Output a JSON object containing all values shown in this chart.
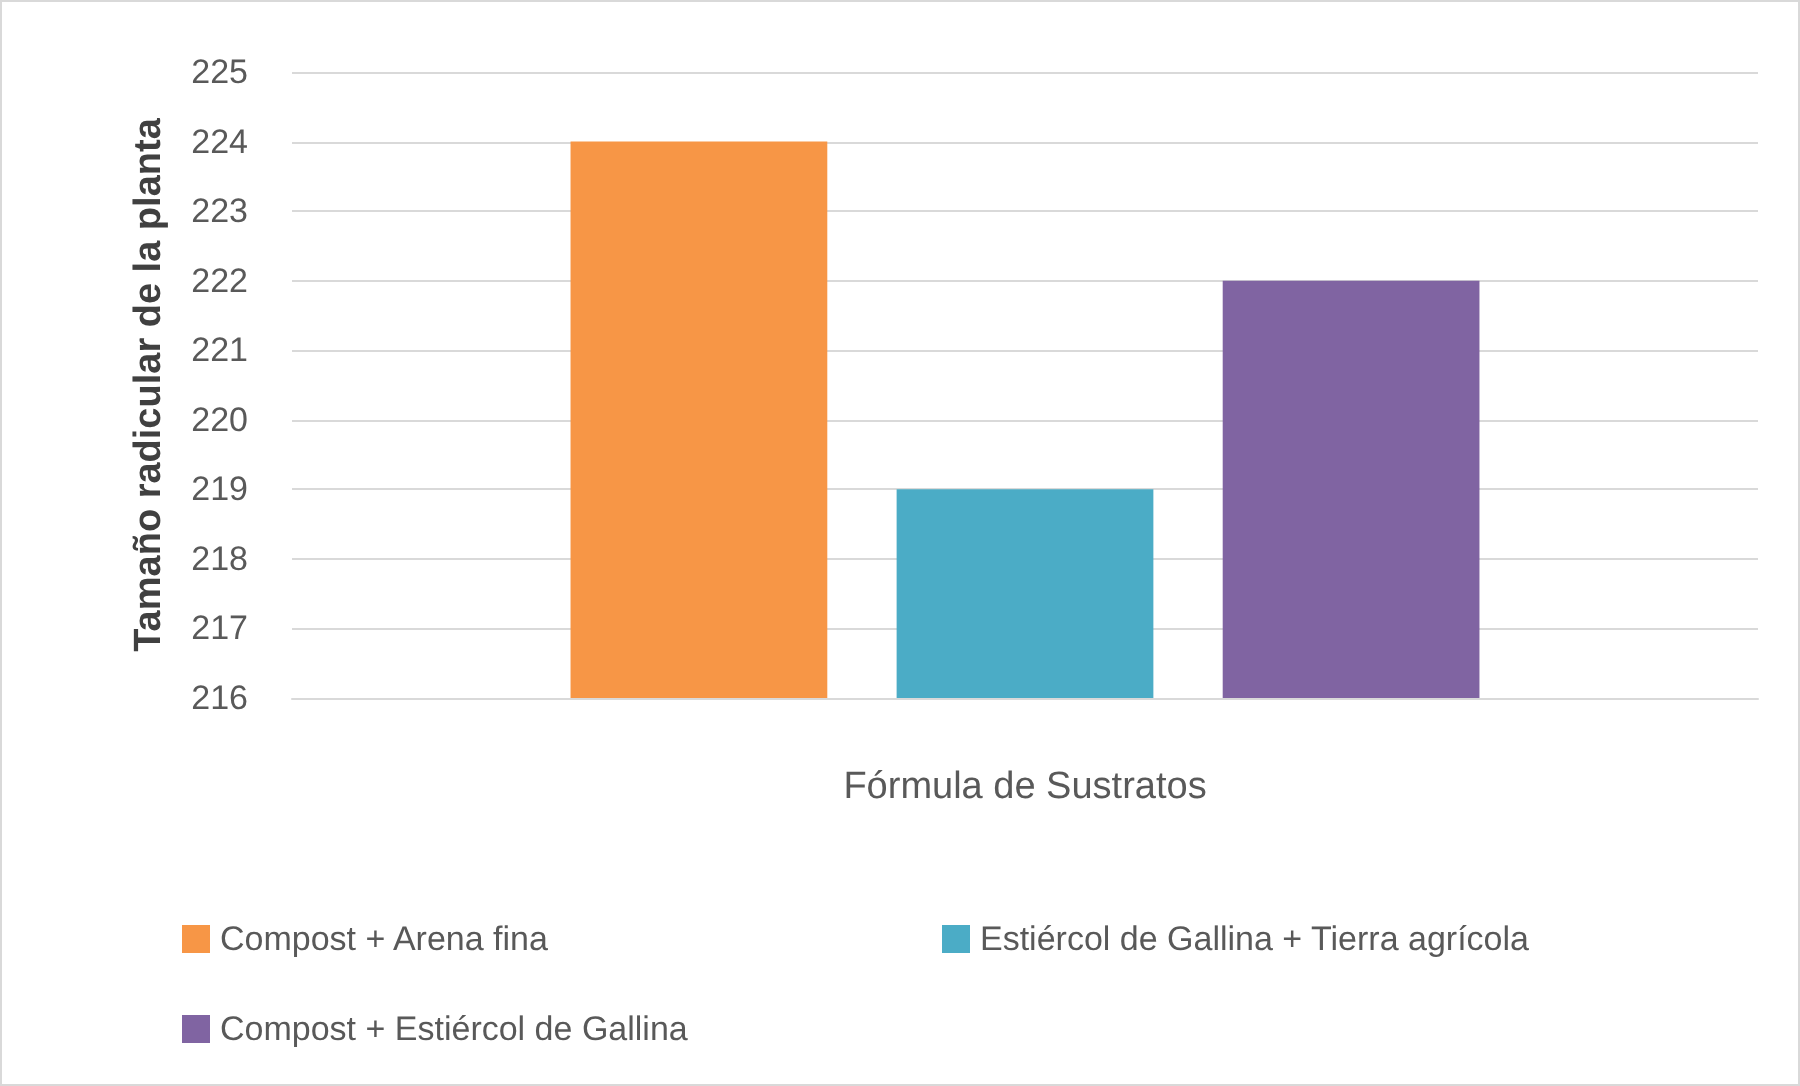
{
  "chart_data": {
    "type": "bar",
    "xlabel": "Fórmula de Sustratos",
    "ylabel": "Tamaño radicular de la planta",
    "categories": [
      null
    ],
    "series": [
      {
        "name": "Compost + Arena fina",
        "color": "#f79646",
        "values": [
          224
        ]
      },
      {
        "name": "Estiércol de Gallina + Tierra agrícola",
        "color": "#4bacc6",
        "values": [
          219
        ]
      },
      {
        "name": "Compost + Estiércol de Gallina",
        "color": "#8064a2",
        "values": [
          222
        ]
      }
    ],
    "ylim": [
      216,
      225
    ],
    "yticks": [
      216,
      217,
      218,
      219,
      220,
      221,
      222,
      223,
      224,
      225
    ],
    "grid": "y",
    "legend": "bottom"
  }
}
